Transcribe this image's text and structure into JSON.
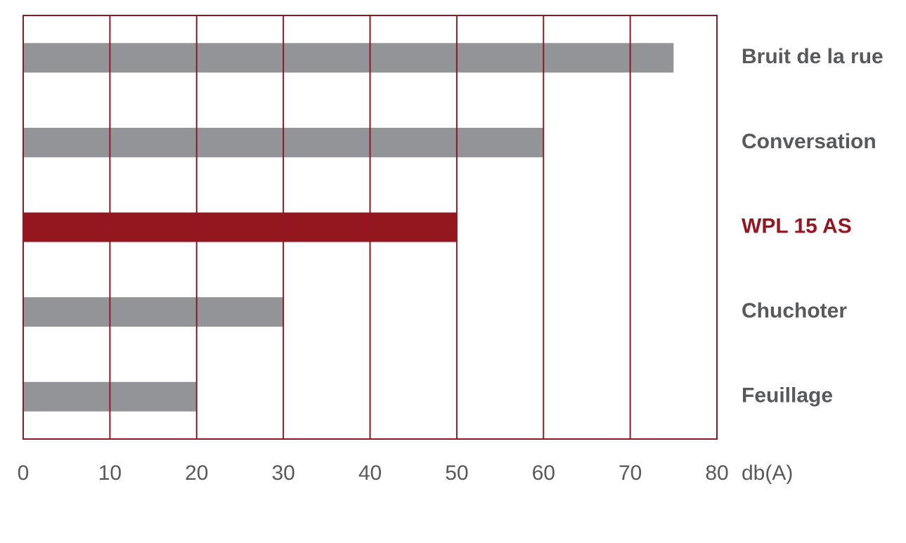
{
  "chart_data": {
    "type": "bar",
    "orientation": "horizontal",
    "categories": [
      "Bruit de la rue",
      "Conversation",
      "WPL 15 AS",
      "Chuchoter",
      "Feuillage"
    ],
    "values": [
      75,
      60,
      50,
      30,
      20
    ],
    "colors": [
      "#939497",
      "#939497",
      "#94161f",
      "#939497",
      "#939497"
    ],
    "label_colors": [
      "#58595b",
      "#58595b",
      "#94161f",
      "#58595b",
      "#58595b"
    ],
    "x_label": "db(A)",
    "xlim": [
      0,
      80
    ],
    "xticks": [
      0,
      10,
      20,
      30,
      40,
      50,
      60,
      70,
      80
    ],
    "grid": true,
    "grid_color": "#8b1a22"
  }
}
